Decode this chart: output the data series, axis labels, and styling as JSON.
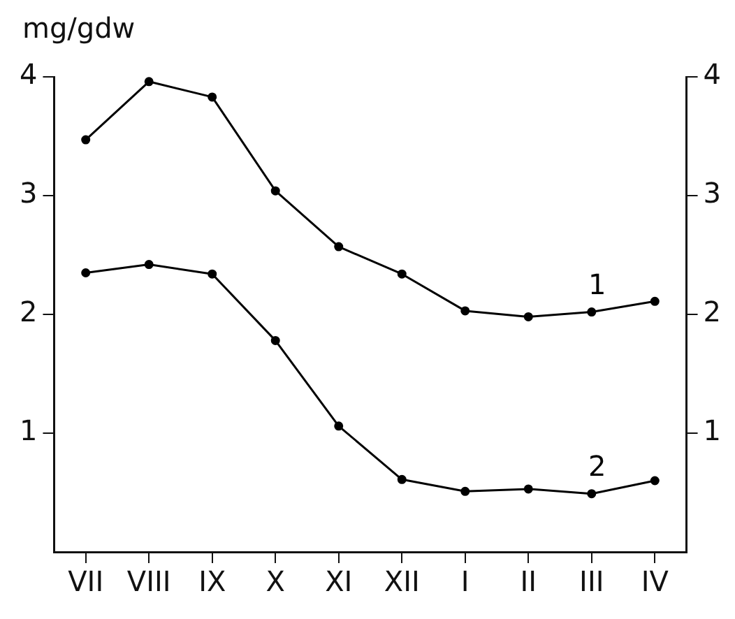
{
  "chart_data": {
    "type": "line",
    "ylabel": "mg/gdw",
    "categories": [
      "VII",
      "VIII",
      "IX",
      "X",
      "XI",
      "XII",
      "I",
      "II",
      "III",
      "IV"
    ],
    "series": [
      {
        "name": "1",
        "color": "#000000",
        "values": [
          3.47,
          3.96,
          3.83,
          3.04,
          2.57,
          2.34,
          2.03,
          1.98,
          2.02,
          2.11
        ]
      },
      {
        "name": "2",
        "color": "#000000",
        "values": [
          2.35,
          2.42,
          2.34,
          1.78,
          1.06,
          0.61,
          0.51,
          0.53,
          0.49,
          0.6
        ]
      }
    ],
    "ylim": [
      0,
      4
    ],
    "yticks": [
      1,
      2,
      3,
      4
    ],
    "y2lim": [
      0,
      4
    ],
    "y2ticks": [
      1,
      2,
      3,
      4
    ],
    "grid": false,
    "legend": false,
    "marker": "circle",
    "line_style": "solid"
  }
}
